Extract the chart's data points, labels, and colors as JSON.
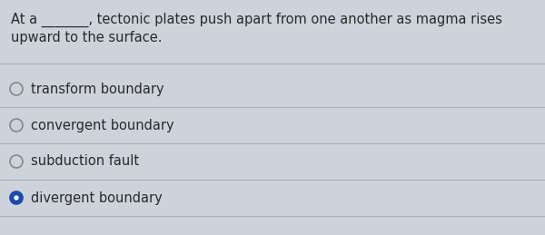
{
  "background_color": "#cdd2db",
  "question_line1": "At a _______, tectonic plates push apart from one another as magma rises",
  "question_line2": "upward to the surface.",
  "options": [
    "transform boundary",
    "convergent boundary",
    "subduction fault",
    "divergent boundary"
  ],
  "correct_index": 3,
  "option_font_size": 10.5,
  "question_font_size": 10.5,
  "text_color": "#2a2a2a",
  "circle_edge_color": "#888888",
  "selected_fill": "#1a4aaa",
  "selected_border": "#1a4aaa",
  "divider_color": "#aab0bc",
  "figwidth": 6.0,
  "figheight": 2.59,
  "dpi": 100
}
